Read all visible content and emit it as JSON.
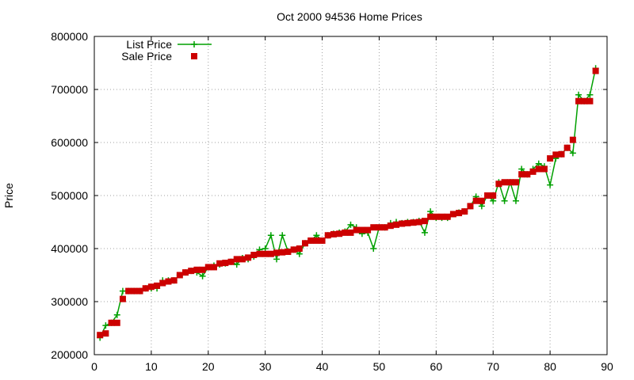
{
  "chart_data": {
    "type": "line",
    "title": "Oct 2000 94536 Home Prices",
    "xlabel": "",
    "ylabel": "Price",
    "xlim": [
      0,
      90
    ],
    "ylim": [
      200000,
      800000
    ],
    "xticks": [
      "0",
      "10",
      "20",
      "30",
      "40",
      "50",
      "60",
      "70",
      "80",
      "90"
    ],
    "yticks": [
      "200000",
      "300000",
      "400000",
      "500000",
      "600000",
      "700000",
      "800000"
    ],
    "grid": true,
    "legend_position": "top-left",
    "series": [
      {
        "name": "List Price",
        "color": "#00a000",
        "marker": "plus",
        "x": [
          1,
          2,
          3,
          4,
          5,
          6,
          7,
          8,
          9,
          10,
          11,
          12,
          13,
          14,
          15,
          16,
          17,
          18,
          19,
          20,
          21,
          22,
          23,
          24,
          25,
          26,
          27,
          28,
          29,
          30,
          31,
          32,
          33,
          34,
          35,
          36,
          37,
          38,
          39,
          40,
          41,
          42,
          43,
          44,
          45,
          46,
          47,
          48,
          49,
          50,
          51,
          52,
          53,
          54,
          55,
          56,
          57,
          58,
          59,
          60,
          61,
          62,
          63,
          64,
          65,
          66,
          67,
          68,
          69,
          70,
          71,
          72,
          73,
          74,
          75,
          76,
          77,
          78,
          79,
          80,
          81,
          82,
          83,
          84,
          85,
          86,
          87,
          88
        ],
        "values": [
          232000,
          255000,
          260000,
          275000,
          320000,
          320000,
          320000,
          320000,
          325000,
          325000,
          325000,
          340000,
          340000,
          340000,
          350000,
          355000,
          358000,
          355000,
          348000,
          365000,
          368000,
          370000,
          372000,
          375000,
          370000,
          382000,
          380000,
          385000,
          398000,
          400000,
          425000,
          380000,
          425000,
          395000,
          398000,
          390000,
          410000,
          415000,
          425000,
          415000,
          425000,
          428000,
          430000,
          432000,
          445000,
          440000,
          428000,
          430000,
          400000,
          440000,
          440000,
          448000,
          450000,
          448000,
          450000,
          450000,
          452000,
          430000,
          470000,
          458000,
          458000,
          458000,
          465000,
          468000,
          470000,
          480000,
          498000,
          480000,
          500000,
          490000,
          525000,
          490000,
          525000,
          490000,
          550000,
          540000,
          550000,
          560000,
          555000,
          520000,
          570000,
          578000,
          590000,
          580000,
          690000,
          678000,
          690000,
          740000
        ]
      },
      {
        "name": "Sale Price",
        "color": "#cc0000",
        "marker": "square",
        "x": [
          1,
          2,
          3,
          4,
          5,
          6,
          7,
          8,
          9,
          10,
          11,
          12,
          13,
          14,
          15,
          16,
          17,
          18,
          19,
          20,
          21,
          22,
          23,
          24,
          25,
          26,
          27,
          28,
          29,
          30,
          31,
          32,
          33,
          34,
          35,
          36,
          37,
          38,
          39,
          40,
          41,
          42,
          43,
          44,
          45,
          46,
          47,
          48,
          49,
          50,
          51,
          52,
          53,
          54,
          55,
          56,
          57,
          58,
          59,
          60,
          61,
          62,
          63,
          64,
          65,
          66,
          67,
          68,
          69,
          70,
          71,
          72,
          73,
          74,
          75,
          76,
          77,
          78,
          79,
          80,
          81,
          82,
          83,
          84,
          85,
          86,
          87,
          88
        ],
        "values": [
          237000,
          240000,
          260000,
          260000,
          305000,
          320000,
          320000,
          320000,
          325000,
          328000,
          330000,
          335000,
          338000,
          340000,
          350000,
          355000,
          358000,
          360000,
          360000,
          365000,
          365000,
          372000,
          373000,
          375000,
          380000,
          380000,
          383000,
          388000,
          390000,
          390000,
          390000,
          392000,
          393000,
          394000,
          398000,
          400000,
          410000,
          415000,
          415000,
          415000,
          425000,
          427000,
          428000,
          430000,
          430000,
          435000,
          435000,
          435000,
          440000,
          440000,
          440000,
          443000,
          445000,
          447000,
          448000,
          449000,
          450000,
          452000,
          460000,
          460000,
          460000,
          460000,
          465000,
          467000,
          470000,
          480000,
          490000,
          490000,
          500000,
          500000,
          522000,
          525000,
          525000,
          525000,
          540000,
          540000,
          545000,
          550000,
          550000,
          570000,
          577000,
          578000,
          590000,
          605000,
          678000,
          678000,
          678000,
          735000
        ]
      }
    ]
  }
}
